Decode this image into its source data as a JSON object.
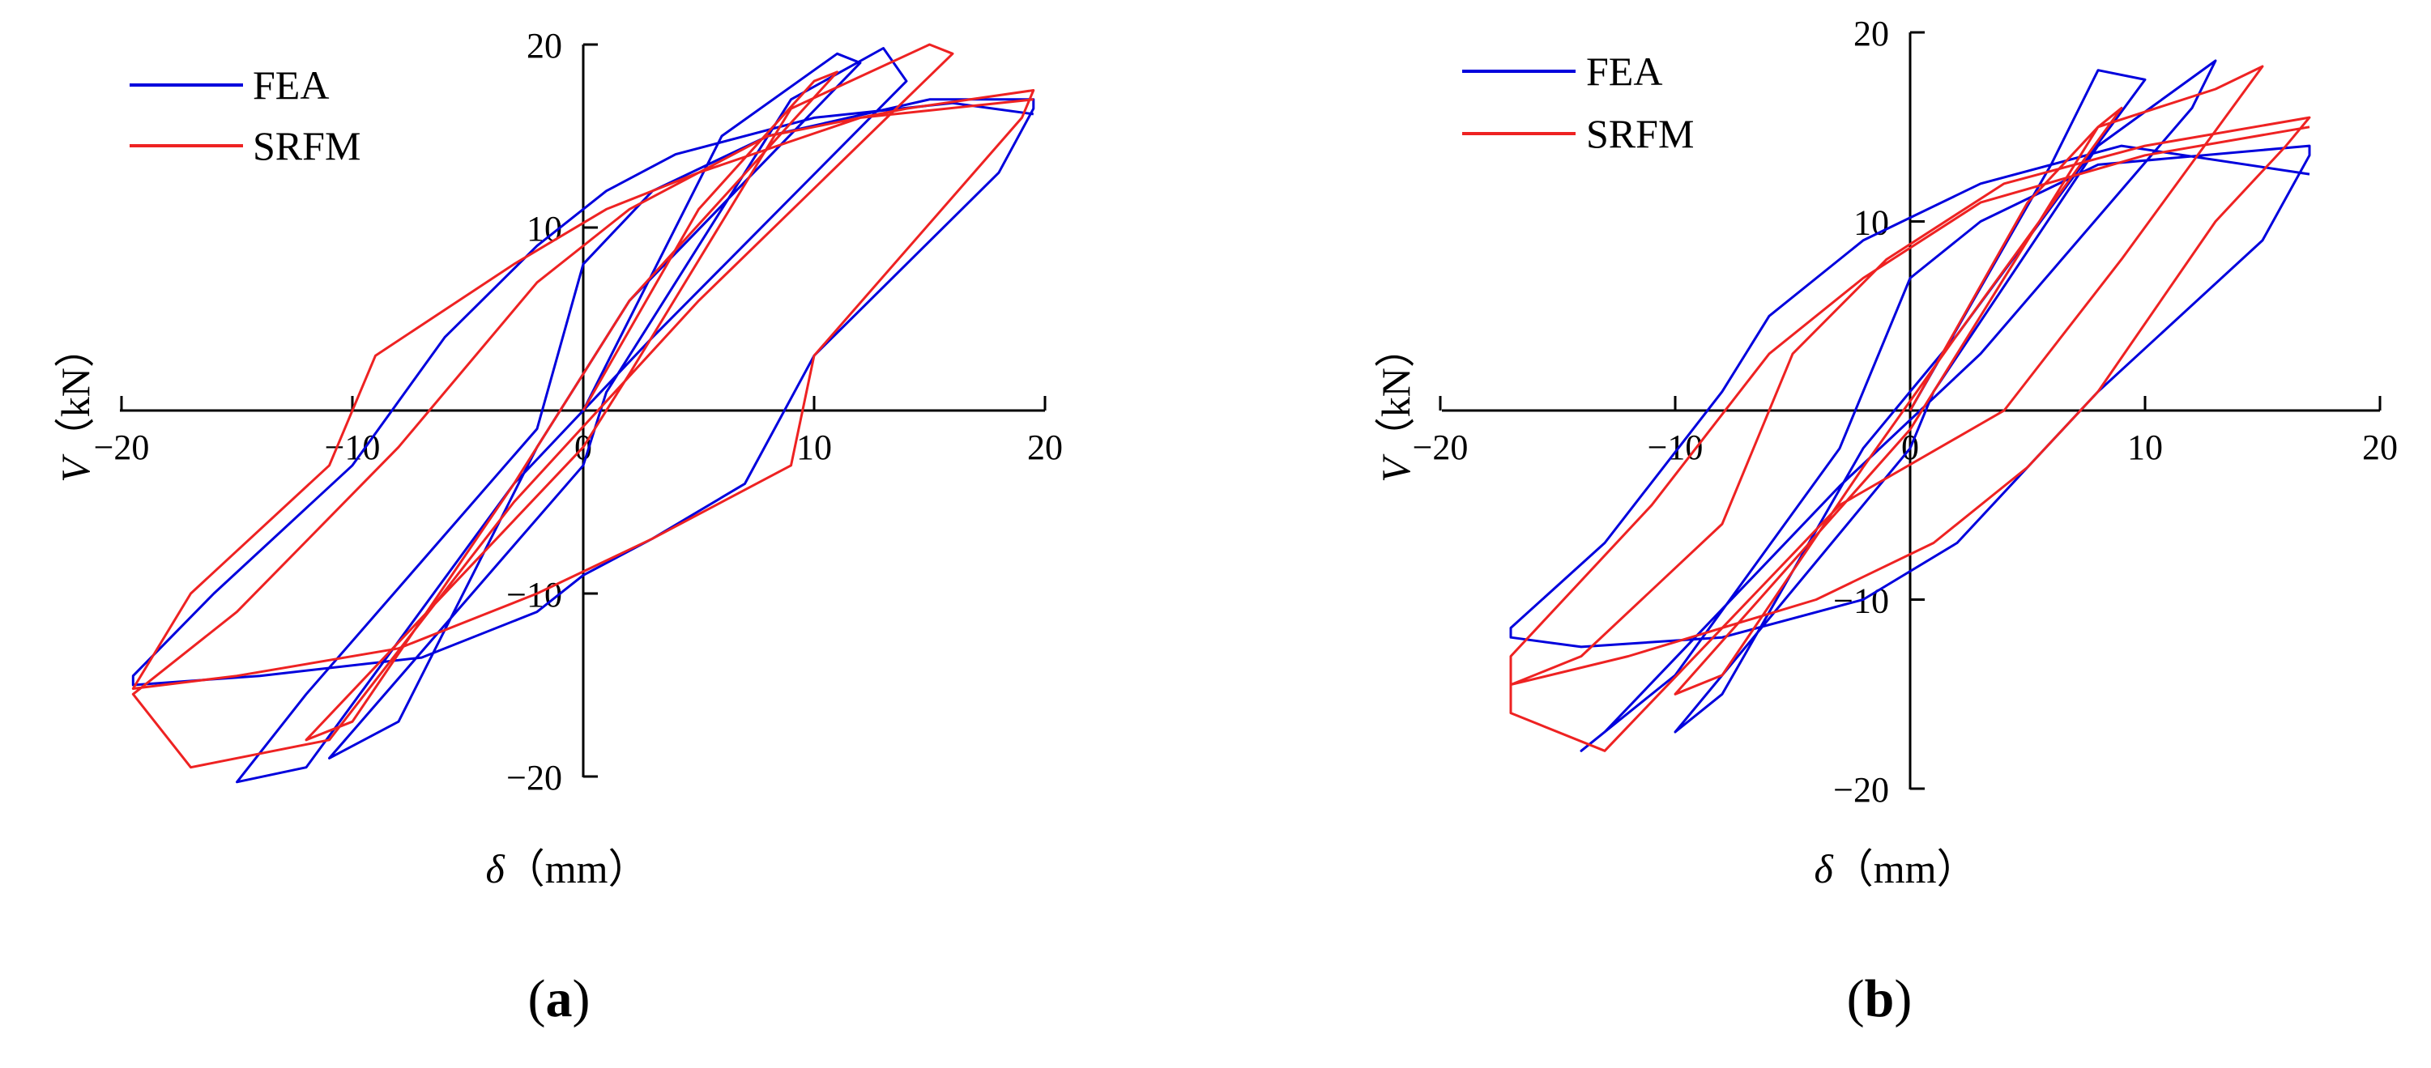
{
  "chart_data": [
    {
      "type": "line",
      "panel_label": "(a)",
      "panel_letter": "a",
      "xlabel": "δ（mm）",
      "xlabel_symbol": "δ",
      "xlabel_unit": "（mm）",
      "ylabel": "V（kN）",
      "ylabel_symbol": "V",
      "ylabel_unit": "（kN）",
      "xlim": [
        -20,
        20
      ],
      "ylim": [
        -20,
        20
      ],
      "x_ticks": [
        "−20",
        "−10",
        "0",
        "10",
        "20"
      ],
      "y_ticks": [
        "20",
        "10",
        "0",
        "−10",
        "−20"
      ],
      "grid": false,
      "legend": "top-left",
      "series": [
        {
          "name": "FEA",
          "color": "#0000dd",
          "points": [
            [
              0,
              0
            ],
            [
              6,
              15
            ],
            [
              11,
              19.5
            ],
            [
              12,
              19
            ],
            [
              2,
              6
            ],
            [
              -2,
              -2
            ],
            [
              -8,
              -17
            ],
            [
              -11,
              -19
            ],
            [
              0,
              -3
            ],
            [
              1,
              1
            ],
            [
              9,
              17
            ],
            [
              13,
              19.8
            ],
            [
              14,
              18
            ],
            [
              3,
              4
            ],
            [
              -3,
              -4
            ],
            [
              -12,
              -19.5
            ],
            [
              -15,
              -20.3
            ],
            [
              -12,
              -15.5
            ],
            [
              -2,
              -1
            ],
            [
              0,
              8
            ],
            [
              3,
              12
            ],
            [
              8,
              15
            ],
            [
              15,
              17
            ],
            [
              19.5,
              17
            ],
            [
              19.5,
              16.5
            ],
            [
              18,
              13
            ],
            [
              10,
              3
            ],
            [
              7,
              -4
            ],
            [
              3,
              -7
            ],
            [
              0,
              -9
            ],
            [
              -2,
              -11
            ],
            [
              -7,
              -13.5
            ],
            [
              -14,
              -14.5
            ],
            [
              -19.5,
              -15
            ],
            [
              -19.5,
              -14.5
            ],
            [
              -16,
              -10
            ],
            [
              -10,
              -3
            ],
            [
              -6,
              4
            ],
            [
              -2,
              9
            ],
            [
              1,
              12
            ],
            [
              4,
              14
            ],
            [
              10,
              16
            ],
            [
              16,
              16.8
            ],
            [
              19.5,
              16.2
            ]
          ]
        },
        {
          "name": "SRFM",
          "color": "#ee2222",
          "points": [
            [
              0,
              0
            ],
            [
              5,
              11
            ],
            [
              10,
              18
            ],
            [
              11,
              18.5
            ],
            [
              2,
              6
            ],
            [
              -3,
              -4
            ],
            [
              -10,
              -17
            ],
            [
              -12,
              -18
            ],
            [
              0,
              -2
            ],
            [
              2,
              2
            ],
            [
              9,
              16.5
            ],
            [
              15,
              20
            ],
            [
              16,
              19.5
            ],
            [
              5,
              6
            ],
            [
              -3,
              -5
            ],
            [
              -11,
              -18
            ],
            [
              -17,
              -19.5
            ],
            [
              -19.5,
              -15.5
            ],
            [
              -15,
              -11
            ],
            [
              -8,
              -2
            ],
            [
              -2,
              7
            ],
            [
              2,
              11
            ],
            [
              8,
              15
            ],
            [
              14,
              16.5
            ],
            [
              19.5,
              17.5
            ],
            [
              19,
              16
            ],
            [
              10,
              3
            ],
            [
              9,
              -3
            ],
            [
              3,
              -7
            ],
            [
              -2,
              -10
            ],
            [
              -8,
              -13
            ],
            [
              -15,
              -14.5
            ],
            [
              -19.5,
              -15.2
            ],
            [
              -17,
              -10
            ],
            [
              -11,
              -3
            ],
            [
              -9,
              3
            ],
            [
              -3,
              8
            ],
            [
              1,
              11
            ],
            [
              5,
              13
            ],
            [
              12,
              16
            ],
            [
              19.5,
              17
            ]
          ]
        }
      ]
    },
    {
      "type": "line",
      "panel_label": "(b)",
      "panel_letter": "b",
      "xlabel": "δ（mm）",
      "xlabel_symbol": "δ",
      "xlabel_unit": "（mm）",
      "ylabel": "V（kN）",
      "ylabel_symbol": "V",
      "ylabel_unit": "（kN）",
      "xlim": [
        -20,
        20
      ],
      "ylim": [
        -20,
        20
      ],
      "x_ticks": [
        "−20",
        "−10",
        "0",
        "10",
        "20"
      ],
      "y_ticks": [
        "20",
        "10",
        "0",
        "−10",
        "−20"
      ],
      "grid": false,
      "legend": "top-left",
      "series": [
        {
          "name": "FEA",
          "color": "#0000dd",
          "points": [
            [
              0,
              0
            ],
            [
              6,
              13
            ],
            [
              8,
              18
            ],
            [
              10,
              17.5
            ],
            [
              2,
              4
            ],
            [
              -2,
              -2
            ],
            [
              -8,
              -15
            ],
            [
              -10,
              -17
            ],
            [
              0,
              -2
            ],
            [
              1,
              1
            ],
            [
              8,
              14
            ],
            [
              13,
              18.5
            ],
            [
              12,
              16
            ],
            [
              3,
              3
            ],
            [
              -3,
              -4
            ],
            [
              -13,
              -17
            ],
            [
              -14,
              -18
            ],
            [
              -10,
              -14
            ],
            [
              -3,
              -2
            ],
            [
              0,
              7
            ],
            [
              3,
              10
            ],
            [
              8,
              13
            ],
            [
              17,
              14
            ],
            [
              17,
              13.5
            ],
            [
              15,
              9
            ],
            [
              8,
              1
            ],
            [
              5,
              -3
            ],
            [
              2,
              -7
            ],
            [
              -2,
              -10
            ],
            [
              -8,
              -12
            ],
            [
              -14,
              -12.5
            ],
            [
              -17,
              -12
            ],
            [
              -17,
              -11.5
            ],
            [
              -13,
              -7
            ],
            [
              -8,
              1
            ],
            [
              -6,
              5
            ],
            [
              -2,
              9
            ],
            [
              3,
              12
            ],
            [
              9,
              14
            ],
            [
              17,
              12.5
            ]
          ]
        },
        {
          "name": "SRFM",
          "color": "#ee2222",
          "points": [
            [
              0,
              0
            ],
            [
              5,
              11
            ],
            [
              8,
              15
            ],
            [
              9,
              16
            ],
            [
              2,
              4
            ],
            [
              -2,
              -3
            ],
            [
              -8,
              -14
            ],
            [
              -10,
              -15
            ],
            [
              0,
              -1
            ],
            [
              2,
              3
            ],
            [
              8,
              15
            ],
            [
              13,
              17
            ],
            [
              15,
              18.2
            ],
            [
              9,
              8
            ],
            [
              4,
              0
            ],
            [
              -3,
              -5
            ],
            [
              -13,
              -18
            ],
            [
              -17,
              -16
            ],
            [
              -17,
              -14.5
            ],
            [
              -14,
              -13
            ],
            [
              -8,
              -6
            ],
            [
              -5,
              3
            ],
            [
              -1,
              8
            ],
            [
              4,
              12
            ],
            [
              10,
              14
            ],
            [
              17,
              15.5
            ],
            [
              16,
              14
            ],
            [
              13,
              10
            ],
            [
              8,
              1
            ],
            [
              5,
              -3
            ],
            [
              1,
              -7
            ],
            [
              -4,
              -10
            ],
            [
              -12,
              -13
            ],
            [
              -17,
              -14.5
            ],
            [
              -17,
              -13
            ],
            [
              -11,
              -5
            ],
            [
              -6,
              3
            ],
            [
              -2,
              7
            ],
            [
              3,
              11
            ],
            [
              10,
              13.5
            ],
            [
              17,
              15
            ]
          ]
        }
      ]
    }
  ]
}
